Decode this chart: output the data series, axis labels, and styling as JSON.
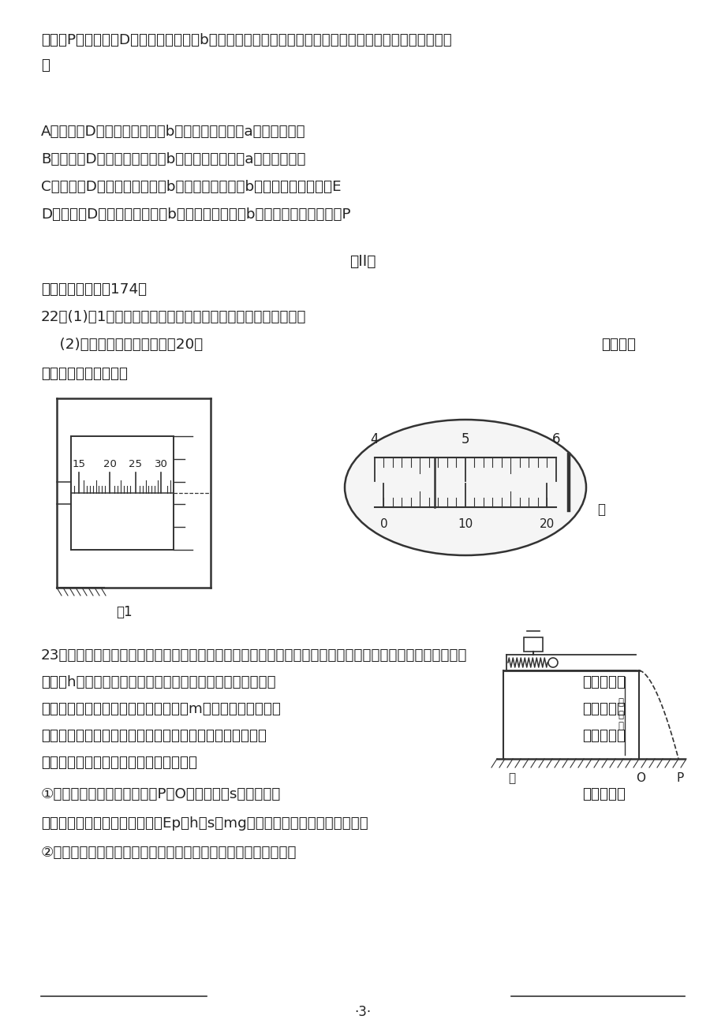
{
  "bg_color": "#ffffff",
  "text_color": "#222222",
  "line_color": "#333333",
  "para1": "功率为P。现把细杆D水平移动少许，让b球仍从原位置由静止释放，不计空气阻力，下列说法中不正确的",
  "para1b": "是",
  "optA": "A．若细杆D水平向左移动，则b球摆到最低点时，a球会离开地面",
  "optB": "B．若细杆D水平向右移动，则b球摆到最低点时，a球会离开地面",
  "optC": "C．若细杆D水平向左移动，则b球摆到最低点时，b球的机械能仍将等于E",
  "optD": "D．若细杆D水平向右移动，则b球摆到最低点时，b球重力的瞬时功率仍为P",
  "section_title": "第II卷",
  "section_sub": "三、非选择题：共174分",
  "q22": "22．(1)图1中螺旋测微器的读数为＿＿＿＿＿＿＿＿＿＿＿＿。",
  "q22_2a": "    (2)图甲中游标卡尺（游标为20分",
  "q22_2b": "度）的读",
  "q22_3": "数是＿＿＿＿＿＿＿；",
  "fig1_label": "图1",
  "caliper_label": "甲",
  "q23_line1": "23．为了研究轻质弹簧的弹性势能与弹簧压缩量的关系，某实验小组的实验装置如图甲所示，水平光滑槽距地",
  "q23_line2a": "面高为h，光滑槽与桌子右边缘垂直，槽出口与桌边缘相齐，",
  "q23_line2b": "槽中放置一",
  "q23_line3a": "轻质弹簧，其左端固定，右端与质量为m的小钢球接触。将小",
  "q23_line3b": "球向左推，",
  "q23_line4a": "压缩弹簧一段距离后由静止释放，弹簧将小球沿水平方向推",
  "q23_line4b": "出，小球落",
  "q23_line5a": "到位于水平地面的记录纸上，留下痕迹。",
  "q23_line6a": "①若测得某次实验小球的落点P到O点的距离为s，那么由理",
  "q23_line6b": "论分析得到",
  "q23_line7": "小球释放前压缩弹簧的弹性势能Ep与h、s和mg之间的关系式是＿＿＿＿＿＿；",
  "q23_line8": "②该同学改变弹簧的压缩量进行多次实验，测量得到下表的数据：",
  "page_num": "·3·"
}
